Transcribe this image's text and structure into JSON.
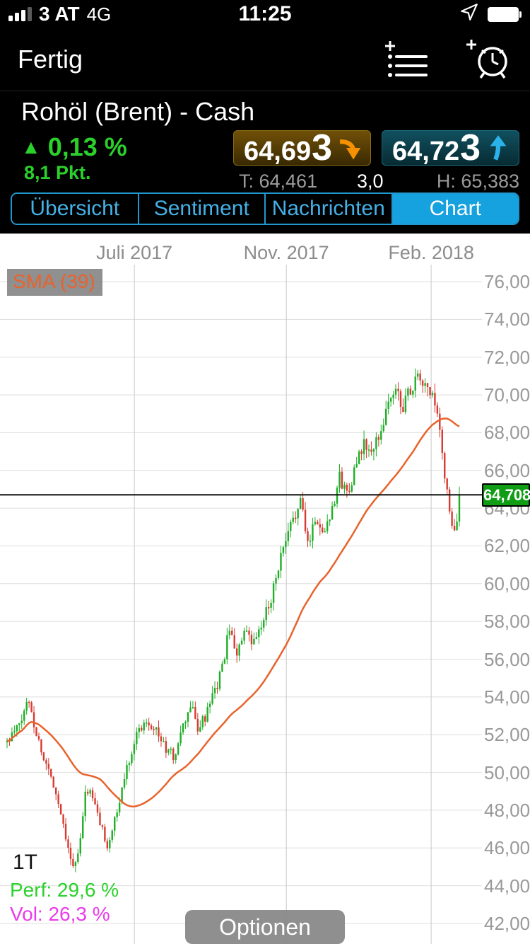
{
  "colors": {
    "up": "#1fae27",
    "down": "#d63b31",
    "sma": "#e8632c",
    "accent_blue": "#2197cf",
    "active_tab_bg": "#16a1df",
    "green_text": "#2bd12b",
    "magenta_text": "#ea3bea",
    "price_badge_bg": "#0f9d14",
    "bid_arrow": "#f59100",
    "ask_arrow": "#2ab3ea"
  },
  "status_bar": {
    "carrier": "3 AT",
    "network": "4G",
    "time": "11:25"
  },
  "nav_bar": {
    "done_label": "Fertig"
  },
  "instrument": {
    "title": "Rohöl (Brent) - Cash",
    "direction": "up",
    "up_triangle": "▲",
    "change_pct": "0,13 %",
    "change_pts": "8,1 Pkt.",
    "bid_main": "64,69",
    "bid_last": "3",
    "ask_main": "64,72",
    "ask_last": "3",
    "low": "T: 64,461",
    "spread": "3,0",
    "high": "H: 65,383"
  },
  "tabs": [
    {
      "label": "Übersicht",
      "active": false
    },
    {
      "label": "Sentiment",
      "active": false
    },
    {
      "label": "Nachrichten",
      "active": false
    },
    {
      "label": "Chart",
      "active": true
    }
  ],
  "chart": {
    "sma_label": "SMA (39)",
    "timeframe": "1T",
    "perf": "Perf: 29,6 %",
    "vol": "Vol: 26,3 %",
    "options_button": "Optionen"
  },
  "chart_data": {
    "type": "candlestick",
    "title": "Rohöl (Brent) - Cash, 1T Chart",
    "sma_period": 39,
    "current_price": 64.708,
    "current_price_label": "64,708",
    "num_candles": 186,
    "x_ticks": [
      {
        "label": "Juli 2017",
        "pos": 0.271
      },
      {
        "label": "Nov. 2017",
        "pos": 0.591
      },
      {
        "label": "Feb. 2018",
        "pos": 0.896
      }
    ],
    "y_ticks": [
      {
        "v": 76,
        "label": "76,000"
      },
      {
        "v": 74,
        "label": "74,000"
      },
      {
        "v": 72,
        "label": "72,000"
      },
      {
        "v": 70,
        "label": "70,000"
      },
      {
        "v": 68,
        "label": "68,000"
      },
      {
        "v": 66,
        "label": "66,000"
      },
      {
        "v": 64,
        "label": "64,000"
      },
      {
        "v": 62,
        "label": "62,000"
      },
      {
        "v": 60,
        "label": "60,000"
      },
      {
        "v": 58,
        "label": "58,000"
      },
      {
        "v": 56,
        "label": "56,000"
      },
      {
        "v": 54,
        "label": "54,000"
      },
      {
        "v": 52,
        "label": "52,000"
      },
      {
        "v": 50,
        "label": "50,000"
      },
      {
        "v": 48,
        "label": "48,000"
      },
      {
        "v": 46,
        "label": "46,000"
      },
      {
        "v": 44,
        "label": "44,000"
      },
      {
        "v": 42,
        "label": "42,000"
      }
    ],
    "close_keyframes": [
      [
        0.003,
        51.6
      ],
      [
        0.018,
        52.1
      ],
      [
        0.033,
        52.7
      ],
      [
        0.048,
        54.0
      ],
      [
        0.062,
        52.3
      ],
      [
        0.082,
        50.6
      ],
      [
        0.1,
        49.5
      ],
      [
        0.115,
        48.0
      ],
      [
        0.13,
        46.3
      ],
      [
        0.143,
        44.8
      ],
      [
        0.155,
        45.9
      ],
      [
        0.17,
        49.3
      ],
      [
        0.185,
        48.5
      ],
      [
        0.2,
        47.2
      ],
      [
        0.215,
        46.1
      ],
      [
        0.235,
        47.9
      ],
      [
        0.255,
        50.3
      ],
      [
        0.275,
        52.0
      ],
      [
        0.295,
        52.8
      ],
      [
        0.315,
        52.4
      ],
      [
        0.335,
        51.3
      ],
      [
        0.355,
        50.8
      ],
      [
        0.375,
        52.5
      ],
      [
        0.39,
        53.6
      ],
      [
        0.405,
        52.3
      ],
      [
        0.42,
        52.9
      ],
      [
        0.44,
        54.2
      ],
      [
        0.455,
        55.4
      ],
      [
        0.47,
        57.5
      ],
      [
        0.487,
        56.4
      ],
      [
        0.505,
        57.4
      ],
      [
        0.52,
        56.7
      ],
      [
        0.54,
        57.8
      ],
      [
        0.558,
        59.2
      ],
      [
        0.575,
        61.0
      ],
      [
        0.593,
        62.4
      ],
      [
        0.61,
        63.8
      ],
      [
        0.622,
        64.3
      ],
      [
        0.636,
        62.1
      ],
      [
        0.652,
        63.5
      ],
      [
        0.668,
        62.7
      ],
      [
        0.685,
        63.8
      ],
      [
        0.703,
        65.6
      ],
      [
        0.718,
        64.8
      ],
      [
        0.738,
        66.2
      ],
      [
        0.755,
        67.4
      ],
      [
        0.772,
        66.8
      ],
      [
        0.79,
        68.2
      ],
      [
        0.806,
        69.6
      ],
      [
        0.822,
        70.2
      ],
      [
        0.838,
        69.4
      ],
      [
        0.855,
        70.5
      ],
      [
        0.872,
        70.9
      ],
      [
        0.888,
        70.2
      ],
      [
        0.903,
        69.7
      ],
      [
        0.913,
        68.0
      ],
      [
        0.923,
        66.1
      ],
      [
        0.933,
        64.2
      ],
      [
        0.943,
        62.4
      ],
      [
        0.95,
        63.1
      ],
      [
        0.9554,
        64.708
      ]
    ]
  }
}
